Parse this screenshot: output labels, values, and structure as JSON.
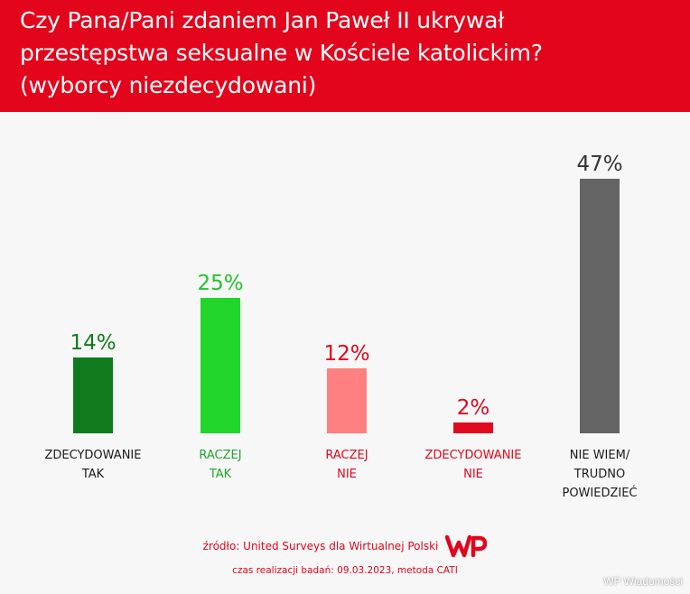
{
  "header": {
    "title_lines": [
      "Czy Pana/Pani zdaniem Jan Paweł II ukrywał",
      "przestępstwa seksualne w Kościele katolickim?",
      "(wyborcy niezdecydowani)"
    ]
  },
  "chart_data": {
    "type": "bar",
    "title": "Czy Pana/Pani zdaniem Jan Paweł II ukrywał przestępstwa seksualne w Kościele katolickim? (wyborcy niezdecydowani)",
    "categories": [
      [
        "ZDECYDOWANIE",
        "TAK"
      ],
      [
        "RACZEJ",
        "TAK"
      ],
      [
        "RACZEJ",
        "NIE"
      ],
      [
        "ZDECYDOWANIE",
        "NIE"
      ],
      [
        "NIE WIEM/",
        "TRUDNO",
        "POWIEDZIEĆ"
      ]
    ],
    "values": [
      14,
      25,
      12,
      2,
      47
    ],
    "value_labels": [
      "14%",
      "25%",
      "12%",
      "2%",
      "47%"
    ],
    "colors": [
      "#0f7b1d",
      "#21d52b",
      "#ff8080",
      "#e00b1e",
      "#646464"
    ],
    "label_colors": [
      "#0f7b1d",
      "#21c42a",
      "#e3051c",
      "#e3051c",
      "#333333"
    ],
    "category_label_colors": [
      "#1a1a1a",
      "#1fa82a",
      "#e3051c",
      "#e3051c",
      "#1a1a1a"
    ],
    "ylim": [
      0,
      47
    ],
    "grid": false,
    "legend": "none"
  },
  "footer": {
    "source": "źródło: United Surveys dla Wirtualnej Polski",
    "date": "czas realizacji badań: 09.03.2023, metoda CATI",
    "logo_text": "WP"
  },
  "watermark": "WP Wiadomości",
  "colors": {
    "brand_red": "#e3051c",
    "background": "#f7f7f7"
  }
}
